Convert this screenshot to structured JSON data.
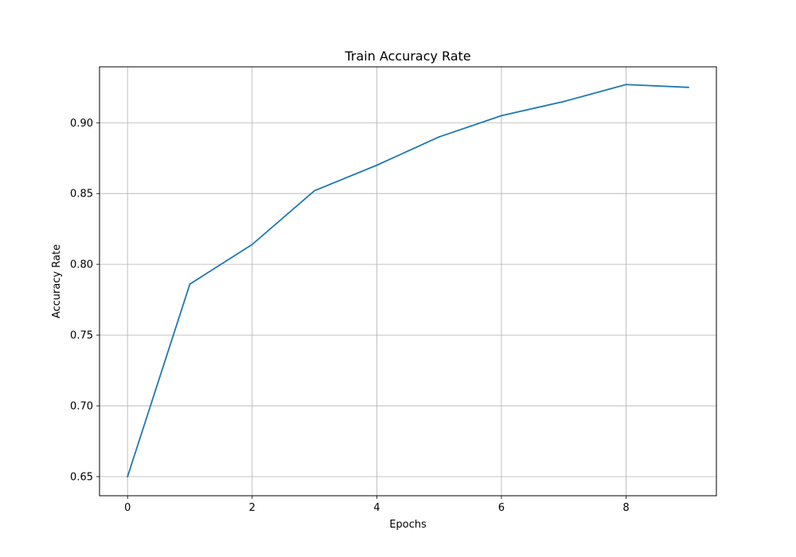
{
  "chart_data": {
    "type": "line",
    "title": "Train Accuracy Rate",
    "xlabel": "Epochs",
    "ylabel": "Accuracy Rate",
    "xlim": [
      -0.45,
      9.45
    ],
    "ylim": [
      0.6365,
      0.9395
    ],
    "xticks": [
      0,
      2,
      4,
      6,
      8
    ],
    "xtick_labels": [
      "0",
      "2",
      "4",
      "6",
      "8"
    ],
    "yticks": [
      0.65,
      0.7,
      0.75,
      0.8,
      0.85,
      0.9
    ],
    "ytick_labels": [
      "0.65",
      "0.70",
      "0.75",
      "0.80",
      "0.85",
      "0.90"
    ],
    "grid": true,
    "series": [
      {
        "x": [
          0,
          1,
          2,
          3,
          4,
          5,
          6,
          7,
          8,
          9
        ],
        "values": [
          0.65,
          0.786,
          0.814,
          0.852,
          0.87,
          0.89,
          0.905,
          0.915,
          0.927,
          0.925
        ],
        "color": "#1f77b4"
      }
    ]
  }
}
